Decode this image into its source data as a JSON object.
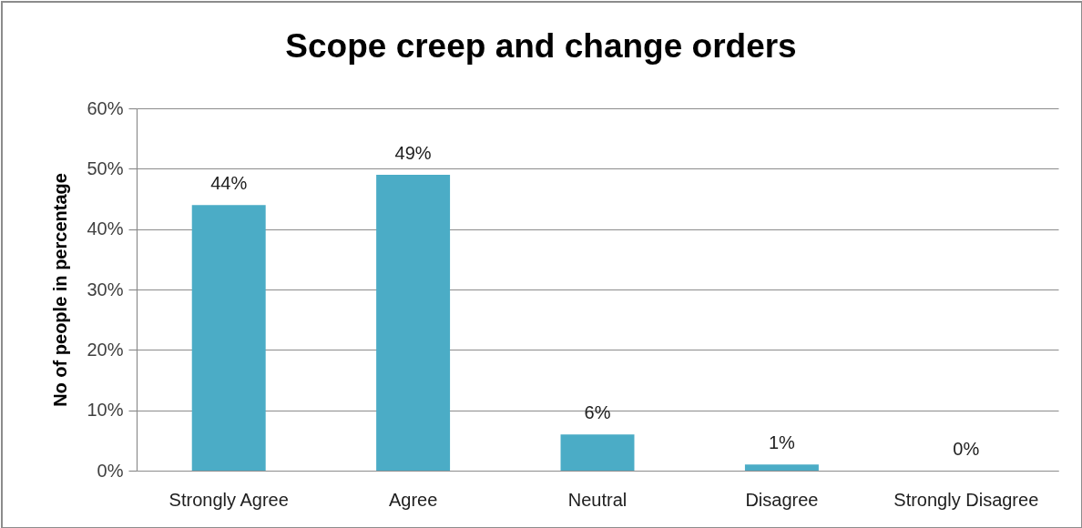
{
  "chart_data": {
    "type": "bar",
    "title": "Scope creep and change orders",
    "ylabel": "No of people in percentage",
    "categories": [
      "Strongly Agree",
      "Agree",
      "Neutral",
      "Disagree",
      "Strongly Disagree"
    ],
    "values": [
      44,
      49,
      6,
      1,
      0
    ],
    "color": "#4bacc6",
    "value_labels": [
      "44%",
      "49%",
      "6%",
      "1%",
      "0%"
    ],
    "ylim": [
      0,
      60
    ],
    "yticks": [
      {
        "value": 0,
        "label": "0%"
      },
      {
        "value": 10,
        "label": "10%"
      },
      {
        "value": 20,
        "label": "20%"
      },
      {
        "value": 30,
        "label": "30%"
      },
      {
        "value": 40,
        "label": "40%"
      },
      {
        "value": 50,
        "label": "50%"
      },
      {
        "value": 60,
        "label": "60%"
      }
    ],
    "grid": "y"
  }
}
